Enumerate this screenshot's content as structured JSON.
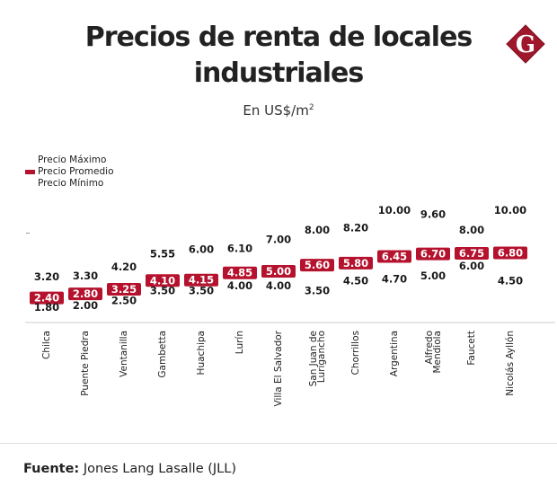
{
  "header": {
    "title_line1": "Precios de renta de locales",
    "title_line2": "industriales",
    "subtitle_main": "En US$/m",
    "subtitle_sup": "2",
    "logo_letter": "G"
  },
  "colors": {
    "accent": "#b5122e",
    "text": "#1a1a1a",
    "baseline": "#e6e6e6"
  },
  "footer": {
    "source_label": "Fuente:",
    "source_text": " Jones Lang Lasalle (JLL)"
  },
  "chart_data": {
    "type": "table",
    "title": "Precios de renta de locales industriales",
    "subtitle": "En US$/m2",
    "legend": [
      "Precio Máximo",
      "Precio Promedio",
      "Precio Mínimo"
    ],
    "legend_position": "top-left",
    "categories": [
      "Chilca",
      "Puente Piedra",
      "Ventanilla",
      "Gambetta",
      "Huachipa",
      "Lurín",
      "Villa El Salvador",
      "San Juan de Lurigancho",
      "Chorrillos",
      "Argentina",
      "Alfredo Mendiola",
      "Faucett",
      "Nicolás Ayllón"
    ],
    "series": [
      {
        "name": "Precio Máximo",
        "values": [
          "3.20",
          "3.30",
          "4.20",
          "5.55",
          "6.00",
          "6.10",
          "7.00",
          "8.00",
          "8.20",
          "10.00",
          "9.60",
          "8.00",
          "10.00"
        ]
      },
      {
        "name": "Precio Promedio",
        "values": [
          "2.40",
          "2.80",
          "3.25",
          "4.10",
          "4.15",
          "4.85",
          "5.00",
          "5.60",
          "5.80",
          "6.45",
          "6.70",
          "6.75",
          "6.80"
        ]
      },
      {
        "name": "Precio Mínimo",
        "values": [
          "1.80",
          "2.00",
          "2.50",
          "3.50",
          "3.50",
          "4.00",
          "4.00",
          "3.50",
          "4.50",
          "4.70",
          "5.00",
          "6.00",
          "4.50"
        ]
      }
    ],
    "category_labels_wrapped": {
      "San Juan de Lurigancho": [
        "San Juan de",
        "Lurigancho"
      ],
      "Alfredo Mendiola": [
        "Alfredo",
        "Mendiola"
      ]
    },
    "xlabel": "",
    "ylabel": "US$/m2",
    "grid": false
  }
}
